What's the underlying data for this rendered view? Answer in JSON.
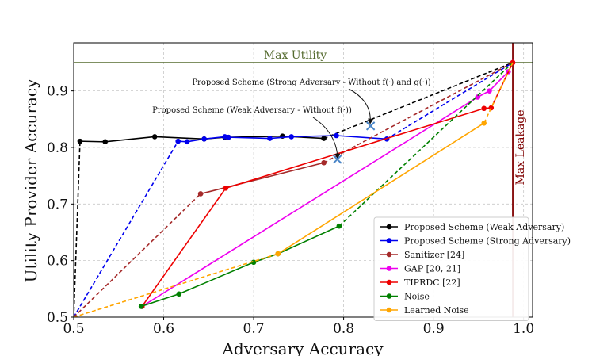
{
  "chart_data": {
    "type": "line",
    "title": "",
    "xlabel": "Adversary Accuracy",
    "ylabel": "Utility Provider Accuracy",
    "xlim": [
      0.5,
      1.01
    ],
    "ylim": [
      0.5,
      0.985
    ],
    "xticks": [
      {
        "value": 0.5,
        "label": "0.5"
      },
      {
        "value": 0.6,
        "label": "0.6"
      },
      {
        "value": 0.7,
        "label": "0.7"
      },
      {
        "value": 0.8,
        "label": "0.8"
      },
      {
        "value": 0.9,
        "label": "0.9"
      },
      {
        "value": 1.0,
        "label": "1.0"
      }
    ],
    "yticks": [
      {
        "value": 0.5,
        "label": "0.5"
      },
      {
        "value": 0.6,
        "label": "0.6"
      },
      {
        "value": 0.7,
        "label": "0.7"
      },
      {
        "value": 0.8,
        "label": "0.8"
      },
      {
        "value": 0.9,
        "label": "0.9"
      }
    ],
    "grid": true,
    "max_utility": {
      "value": 0.95,
      "label": "Max Utility",
      "color": "#556b2f"
    },
    "max_leakage": {
      "value": 0.988,
      "label": "Max Leakage",
      "color": "#800000"
    },
    "series": [
      {
        "name": "Proposed Scheme (Weak Adversary)",
        "color": "#000000",
        "points": [
          [
            0.507,
            0.811
          ],
          [
            0.535,
            0.81
          ],
          [
            0.59,
            0.819
          ],
          [
            0.645,
            0.815
          ],
          [
            0.668,
            0.818
          ],
          [
            0.672,
            0.818
          ],
          [
            0.732,
            0.82
          ],
          [
            0.778,
            0.816
          ]
        ],
        "dash_from_origin": [
          0.5,
          0.5
        ],
        "dash_to_end": [
          0.988,
          0.95
        ]
      },
      {
        "name": "Proposed Scheme (Strong Adversary)",
        "color": "#0000ee",
        "points": [
          [
            0.616,
            0.811
          ],
          [
            0.626,
            0.81
          ],
          [
            0.645,
            0.815
          ],
          [
            0.668,
            0.819
          ],
          [
            0.672,
            0.818
          ],
          [
            0.718,
            0.816
          ],
          [
            0.742,
            0.819
          ],
          [
            0.792,
            0.821
          ],
          [
            0.848,
            0.815
          ]
        ],
        "dash_from_origin": [
          0.5,
          0.5
        ],
        "dash_to_end": [
          0.988,
          0.95
        ]
      },
      {
        "name": "Sanitizer [24]",
        "color": "#a52a2a",
        "points": [
          [
            0.641,
            0.718
          ],
          [
            0.778,
            0.773
          ]
        ],
        "dash_from_origin": [
          0.5,
          0.5
        ],
        "dash_to_end": [
          0.988,
          0.95
        ]
      },
      {
        "name": "GAP [20, 21]",
        "color": "#ee00ee",
        "points": [
          [
            0.576,
            0.519
          ],
          [
            0.949,
            0.889
          ],
          [
            0.962,
            0.9
          ],
          [
            0.983,
            0.934
          ],
          [
            0.988,
            0.95
          ]
        ],
        "dash_from_origin": null,
        "dash_to_end": null
      },
      {
        "name": "TIPRDC [22]",
        "color": "#ee0000",
        "points": [
          [
            0.576,
            0.519
          ],
          [
            0.669,
            0.728
          ],
          [
            0.956,
            0.869
          ],
          [
            0.964,
            0.87
          ],
          [
            0.988,
            0.95
          ]
        ],
        "dash_from_origin": null,
        "dash_to_end": null
      },
      {
        "name": "Noise",
        "color": "#008000",
        "points": [
          [
            0.575,
            0.519
          ],
          [
            0.617,
            0.541
          ],
          [
            0.7,
            0.597
          ],
          [
            0.727,
            0.612
          ],
          [
            0.795,
            0.661
          ]
        ],
        "dash_from_origin": null,
        "dash_to_end": [
          0.988,
          0.95
        ]
      },
      {
        "name": "Learned Noise",
        "color": "#ffa500",
        "points": [
          [
            0.727,
            0.612
          ],
          [
            0.956,
            0.843
          ]
        ],
        "dash_from_origin": [
          0.5,
          0.5
        ],
        "dash_to_end": [
          0.988,
          0.95
        ]
      }
    ],
    "annotations": [
      {
        "text": "Proposed Scheme (Weak Adversary - Without f(·))",
        "marker": [
          0.793,
          0.779
        ],
        "marker_color": "#4a86c8"
      },
      {
        "text": "Proposed Scheme (Strong Adversary - Without f(·) and g(·))",
        "marker": [
          0.83,
          0.838
        ],
        "marker_color": "#4a86c8"
      }
    ],
    "legend_position": "lower-right"
  }
}
